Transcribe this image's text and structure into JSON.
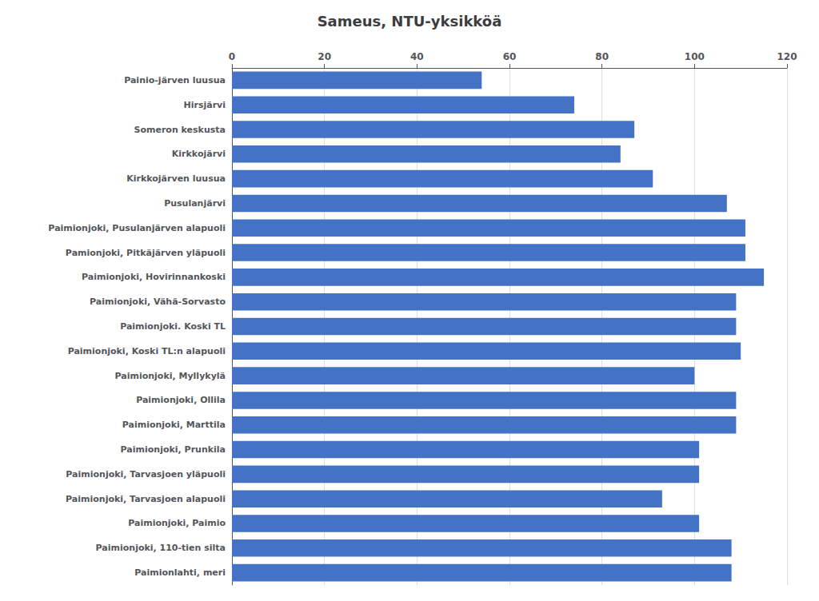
{
  "chart_data": {
    "type": "bar",
    "orientation": "horizontal",
    "title": "Sameus, NTU-yksikköä",
    "categories": [
      "Painio-järven luusua",
      "Hirsjärvi",
      "Someron keskusta",
      "Kirkkojärvi",
      "Kirkkojärven luusua",
      "Pusulanjärvi",
      "Paimionjoki, Pusulanjärven alapuoli",
      "Pamionjoki, Pitkäjärven yläpuoli",
      "Paimionjoki, Hovirinnankoski",
      "Paimionjoki, Vähä-Sorvasto",
      "Paimionjoki. Koski TL",
      "Paimionjoki, Koski TL:n alapuoli",
      "Paimionjoki, Myllykylä",
      "Paimionjoki, Ollila",
      "Paimionjoki, Marttila",
      "Paimionjoki, Prunkila",
      "Paimionjoki, Tarvasjoen yläpuoli",
      "Paimionjoki, Tarvasjoen alapuoli",
      "Paimionjoki, Paimio",
      "Paimionjoki, 110-tien silta",
      "Paimionlahti, meri"
    ],
    "values": [
      54,
      74,
      87,
      84,
      91,
      107,
      111,
      111,
      115,
      109,
      109,
      110,
      100,
      109,
      109,
      101,
      101,
      93,
      101,
      108,
      108
    ],
    "color": "#4472C4",
    "xlim": [
      0,
      120
    ],
    "xticks": [
      0,
      20,
      40,
      60,
      80,
      100,
      120
    ],
    "grid": true
  }
}
